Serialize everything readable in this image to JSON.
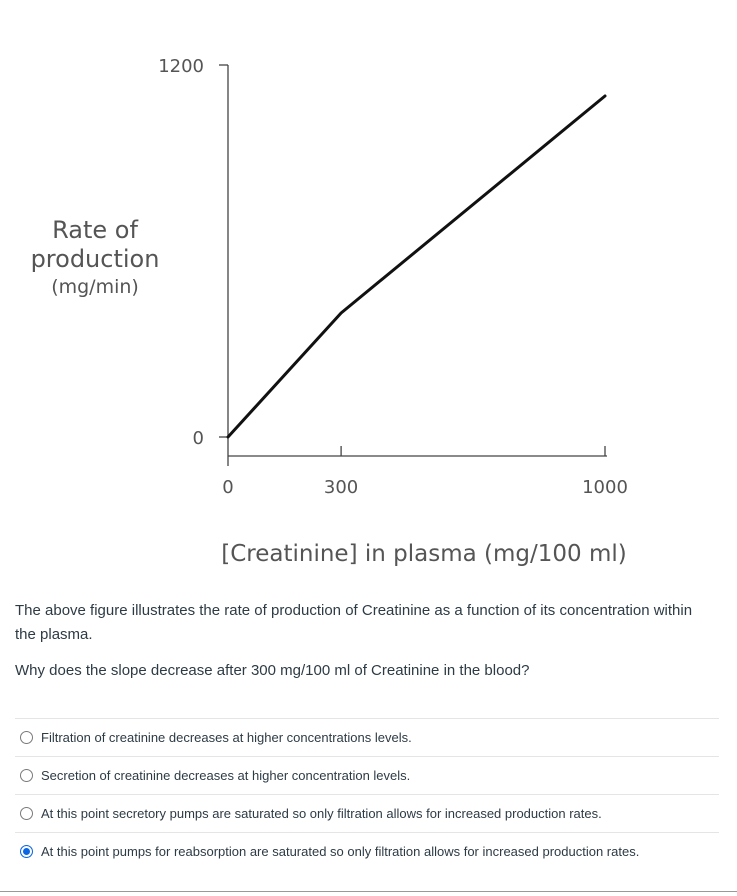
{
  "chart_data": {
    "type": "line",
    "title": "",
    "xlabel": "[Creatinine] in plasma (mg/100 ml)",
    "ylabel_lines": [
      "Rate of",
      "production",
      "(mg/min)"
    ],
    "x_ticks": [
      0,
      300,
      1000
    ],
    "x_tick_labels": [
      "0",
      "300",
      "1000"
    ],
    "y_ticks": [
      0,
      1200
    ],
    "y_tick_labels": [
      "0",
      "1200"
    ],
    "xlim": [
      0,
      1000
    ],
    "ylim": [
      0,
      1200
    ],
    "grid": false,
    "series": [
      {
        "x": [
          0,
          300,
          1000
        ],
        "y": [
          0,
          400,
          1100
        ]
      }
    ],
    "line_color": "#111111",
    "axis_color": "#444444"
  },
  "question": {
    "paragraph1": "The above figure illustrates the rate of production of Creatinine as a function of its concentration within the plasma.",
    "paragraph2": "Why does the slope decrease after 300 mg/100 ml of Creatinine in the blood?"
  },
  "answers": [
    {
      "label": "Filtration of creatinine decreases at higher concentrations levels.",
      "selected": false
    },
    {
      "label": "Secretion of creatinine decreases at higher concentration levels.",
      "selected": false
    },
    {
      "label": "At this point secretory pumps are saturated so only filtration allows for increased production rates.",
      "selected": false
    },
    {
      "label": "At this point pumps for reabsorption are saturated so only filtration allows for increased production rates.",
      "selected": true
    }
  ],
  "colors": {
    "selected_radio": "#0b66e4",
    "text": "#2d3b45"
  }
}
